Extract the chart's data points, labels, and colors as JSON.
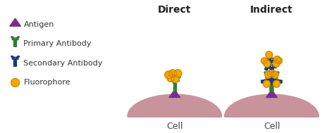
{
  "direct_label": "Direct",
  "indirect_label": "Indirect",
  "cell_label": "Cell",
  "legend_items": [
    {
      "label": "Antigen",
      "color": "#7B2D8B"
    },
    {
      "label": "Primary Antibody",
      "color": "#2E7D32"
    },
    {
      "label": "Secondary Antibody",
      "color": "#1A3A7A"
    },
    {
      "label": "Fluorophore",
      "color": "#F5A800"
    }
  ],
  "cell_color": "#C8939A",
  "antigen_color": "#7B2D8B",
  "primary_color": "#2E7D32",
  "secondary_color": "#1A3A7A",
  "fluorophore_color": "#F5A800",
  "fluorophore_edge": "#CC8800",
  "bg_color": "#FFFFFF",
  "header_fontsize": 10,
  "legend_fontsize": 8,
  "cell_fontsize": 9
}
